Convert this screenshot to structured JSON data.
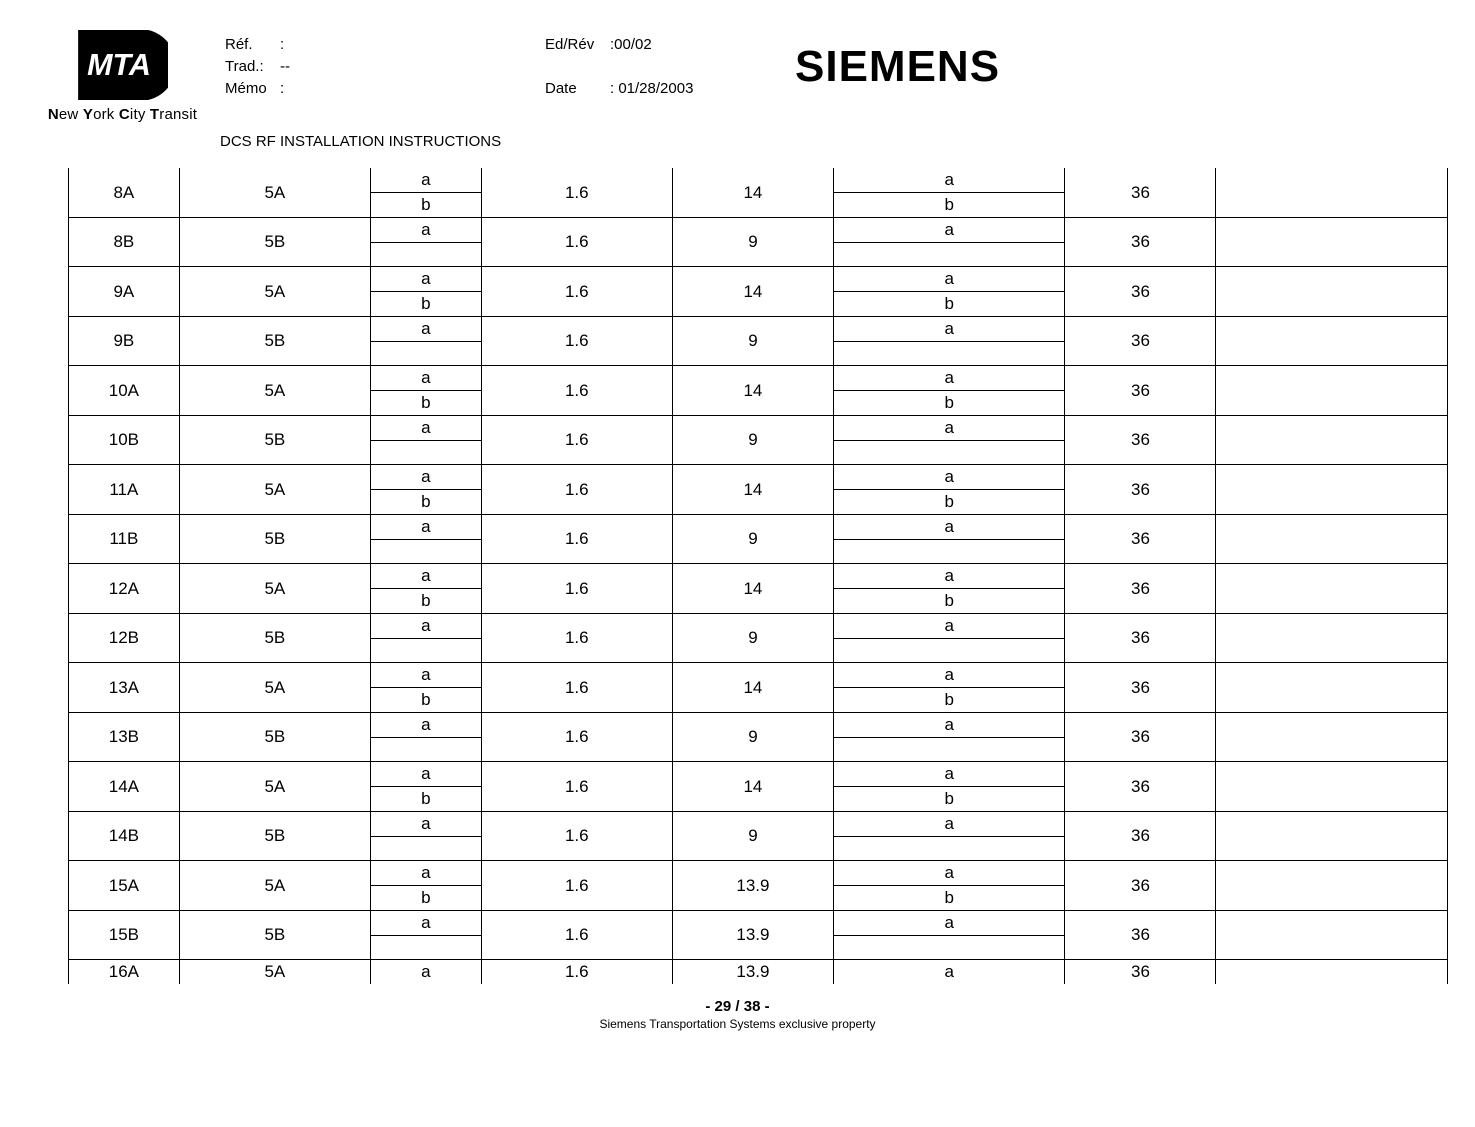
{
  "header": {
    "ref_label": "Réf.",
    "ref_sep": ":",
    "trad_label": "Trad.:",
    "trad_val": "--",
    "memo_label": "Mémo",
    "memo_sep": ":",
    "edrev_label": "Ed/Rév",
    "edrev_val": ":00/02",
    "date_label": "Date",
    "date_val": ": 01/28/2003",
    "siemens": "SIEMENS",
    "doc_title": "DCS RF INSTALLATION INSTRUCTIONS",
    "mta_n": "N",
    "mta_ew": "ew ",
    "mta_y": "Y",
    "mta_ork": "ork ",
    "mta_c": "C",
    "mta_ity": "ity ",
    "mta_t": "T",
    "mta_ransit": "ransit"
  },
  "rows": [
    {
      "id": "8A",
      "c2": "5A",
      "ab": [
        "a",
        "b"
      ],
      "c4": "1.6",
      "c5": "14",
      "ab2": [
        "a",
        "b"
      ],
      "c7": "36"
    },
    {
      "id": "8B",
      "c2": "5B",
      "ab": [
        "a",
        ""
      ],
      "c4": "1.6",
      "c5": "9",
      "ab2": [
        "a",
        ""
      ],
      "c7": "36"
    },
    {
      "id": "9A",
      "c2": "5A",
      "ab": [
        "a",
        "b"
      ],
      "c4": "1.6",
      "c5": "14",
      "ab2": [
        "a",
        "b"
      ],
      "c7": "36"
    },
    {
      "id": "9B",
      "c2": "5B",
      "ab": [
        "a",
        ""
      ],
      "c4": "1.6",
      "c5": "9",
      "ab2": [
        "a",
        ""
      ],
      "c7": "36"
    },
    {
      "id": "10A",
      "c2": "5A",
      "ab": [
        "a",
        "b"
      ],
      "c4": "1.6",
      "c5": "14",
      "ab2": [
        "a",
        "b"
      ],
      "c7": "36"
    },
    {
      "id": "10B",
      "c2": "5B",
      "ab": [
        "a",
        ""
      ],
      "c4": "1.6",
      "c5": "9",
      "ab2": [
        "a",
        ""
      ],
      "c7": "36"
    },
    {
      "id": "11A",
      "c2": "5A",
      "ab": [
        "a",
        "b"
      ],
      "c4": "1.6",
      "c5": "14",
      "ab2": [
        "a",
        "b"
      ],
      "c7": "36"
    },
    {
      "id": "11B",
      "c2": "5B",
      "ab": [
        "a",
        ""
      ],
      "c4": "1.6",
      "c5": "9",
      "ab2": [
        "a",
        ""
      ],
      "c7": "36"
    },
    {
      "id": "12A",
      "c2": "5A",
      "ab": [
        "a",
        "b"
      ],
      "c4": "1.6",
      "c5": "14",
      "ab2": [
        "a",
        "b"
      ],
      "c7": "36"
    },
    {
      "id": "12B",
      "c2": "5B",
      "ab": [
        "a",
        ""
      ],
      "c4": "1.6",
      "c5": "9",
      "ab2": [
        "a",
        ""
      ],
      "c7": "36"
    },
    {
      "id": "13A",
      "c2": "5A",
      "ab": [
        "a",
        "b"
      ],
      "c4": "1.6",
      "c5": "14",
      "ab2": [
        "a",
        "b"
      ],
      "c7": "36"
    },
    {
      "id": "13B",
      "c2": "5B",
      "ab": [
        "a",
        ""
      ],
      "c4": "1.6",
      "c5": "9",
      "ab2": [
        "a",
        ""
      ],
      "c7": "36"
    },
    {
      "id": "14A",
      "c2": "5A",
      "ab": [
        "a",
        "b"
      ],
      "c4": "1.6",
      "c5": "14",
      "ab2": [
        "a",
        "b"
      ],
      "c7": "36"
    },
    {
      "id": "14B",
      "c2": "5B",
      "ab": [
        "a",
        ""
      ],
      "c4": "1.6",
      "c5": "9",
      "ab2": [
        "a",
        ""
      ],
      "c7": "36"
    },
    {
      "id": "15A",
      "c2": "5A",
      "ab": [
        "a",
        "b"
      ],
      "c4": "1.6",
      "c5": "13.9",
      "ab2": [
        "a",
        "b"
      ],
      "c7": "36"
    },
    {
      "id": "15B",
      "c2": "5B",
      "ab": [
        "a",
        ""
      ],
      "c4": "1.6",
      "c5": "13.9",
      "ab2": [
        "a",
        ""
      ],
      "c7": "36"
    }
  ],
  "lastRow": {
    "id": "16A",
    "c2": "5A",
    "ab": "a",
    "c4": "1.6",
    "c5": "13.9",
    "ab2": "a",
    "c7": "36"
  },
  "footer": {
    "page": "- 29 / 38 -",
    "copyright": "Siemens Transportation Systems exclusive property"
  }
}
